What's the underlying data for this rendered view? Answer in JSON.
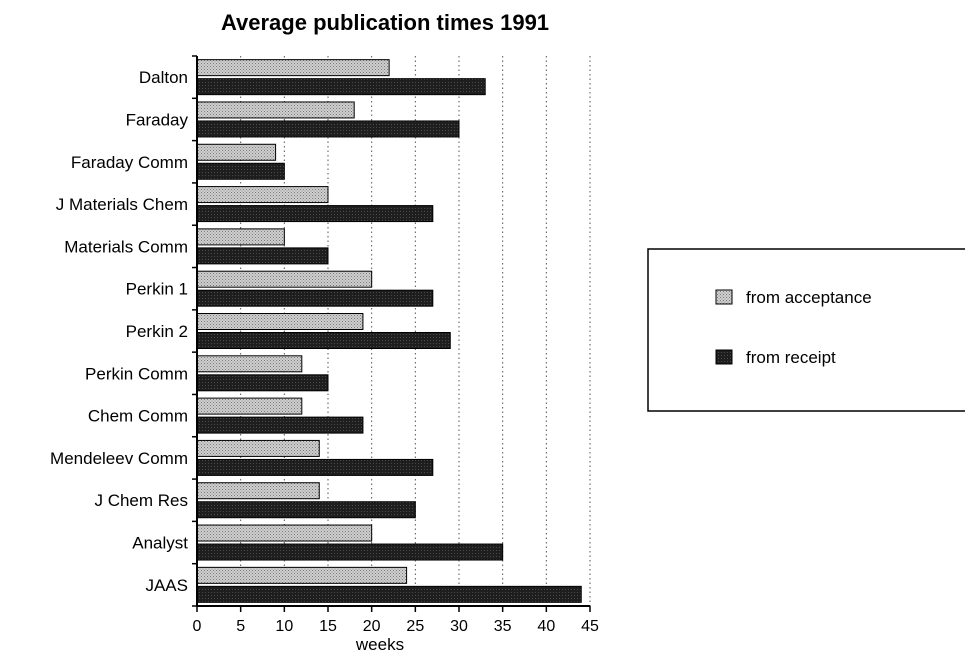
{
  "chart_data": {
    "type": "bar",
    "orientation": "horizontal",
    "title": "Average publication times 1991",
    "xlabel": "weeks",
    "ylabel": "",
    "xlim": [
      0,
      45
    ],
    "xticks": [
      0,
      5,
      10,
      15,
      20,
      25,
      30,
      35,
      40,
      45
    ],
    "grid": "vertical dotted lines",
    "legend_position": "right",
    "categories": [
      "Dalton",
      "Faraday",
      "Faraday Comm",
      "J Materials Chem",
      "Materials Comm",
      "Perkin 1",
      "Perkin 2",
      "Perkin Comm",
      "Chem Comm",
      "Mendeleev Comm",
      "J Chem Res",
      "Analyst",
      "JAAS"
    ],
    "series": [
      {
        "name": "from acceptance",
        "color": "#a9a9a9",
        "values": [
          22,
          18,
          9,
          15,
          10,
          20,
          19,
          12,
          12,
          14,
          14,
          20,
          24
        ]
      },
      {
        "name": "from receipt",
        "color": "#262626",
        "values": [
          33,
          30,
          10,
          27,
          15,
          27,
          29,
          15,
          19,
          27,
          25,
          35,
          44
        ]
      }
    ]
  }
}
